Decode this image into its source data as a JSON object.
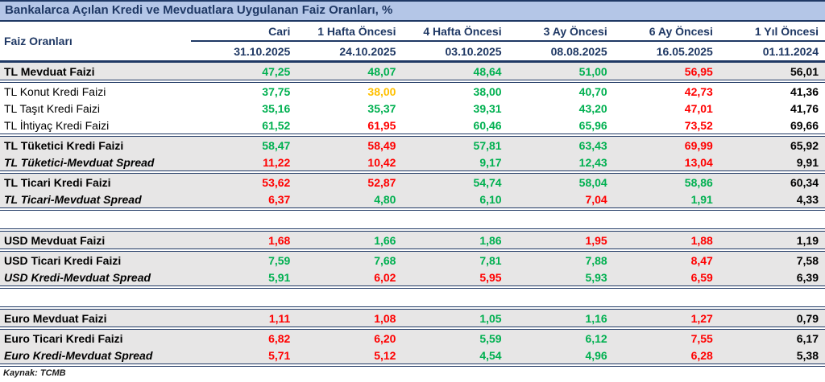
{
  "title": "Bankalarca Açılan Kredi ve Mevduatlara Uygulanan Faiz Oranları, %",
  "colors": {
    "navy": "#1F3864",
    "title_bg": "#B4C6E7",
    "row_gray": "#E7E6E6",
    "increase_red": "#FF0000",
    "decrease_green": "#00B050",
    "flat_amber": "#FFC000",
    "baseline_black": "#000000"
  },
  "table": {
    "label_header": "Faiz Oranları",
    "columns": [
      {
        "label": "Cari",
        "date": "31.10.2025"
      },
      {
        "label": "1 Hafta Öncesi",
        "date": "24.10.2025"
      },
      {
        "label": "4 Hafta Öncesi",
        "date": "03.10.2025"
      },
      {
        "label": "3 Ay Öncesi",
        "date": "08.08.2025"
      },
      {
        "label": "6 Ay Öncesi",
        "date": "16.05.2025"
      },
      {
        "label": "1 Yıl Öncesi",
        "date": "01.11.2024"
      }
    ],
    "rows": [
      {
        "label": "TL Mevduat Faizi",
        "label_style": "bold",
        "bg": "gray",
        "sep_bottom": true,
        "values": [
          "47,25",
          "48,07",
          "48,64",
          "51,00",
          "56,95",
          "56,01"
        ],
        "value_colors": [
          "green",
          "green",
          "green",
          "green",
          "red",
          "black"
        ]
      },
      {
        "label": "TL Konut Kredi Faizi",
        "label_style": "regular",
        "bg": "white",
        "values": [
          "37,75",
          "38,00",
          "38,00",
          "40,70",
          "42,73",
          "41,36"
        ],
        "value_colors": [
          "green",
          "amber",
          "green",
          "green",
          "red",
          "black"
        ]
      },
      {
        "label": "TL Taşıt Kredi Faizi",
        "label_style": "regular",
        "bg": "white",
        "values": [
          "35,16",
          "35,37",
          "39,31",
          "43,20",
          "47,01",
          "41,76"
        ],
        "value_colors": [
          "green",
          "green",
          "green",
          "green",
          "red",
          "black"
        ]
      },
      {
        "label": "TL İhtiyaç Kredi Faizi",
        "label_style": "regular",
        "bg": "white",
        "sep_bottom": true,
        "values": [
          "61,52",
          "61,95",
          "60,46",
          "65,96",
          "73,52",
          "69,66"
        ],
        "value_colors": [
          "green",
          "red",
          "green",
          "green",
          "red",
          "black"
        ]
      },
      {
        "label": "TL Tüketici Kredi Faizi",
        "label_style": "bold",
        "bg": "gray",
        "values": [
          "58,47",
          "58,49",
          "57,81",
          "63,43",
          "69,99",
          "65,92"
        ],
        "value_colors": [
          "green",
          "red",
          "green",
          "green",
          "red",
          "black"
        ]
      },
      {
        "label": "TL Tüketici-Mevduat Spread",
        "label_style": "bolditalic",
        "bg": "gray",
        "sep_bottom": true,
        "values": [
          "11,22",
          "10,42",
          "9,17",
          "12,43",
          "13,04",
          "9,91"
        ],
        "value_colors": [
          "red",
          "red",
          "green",
          "green",
          "red",
          "black"
        ]
      },
      {
        "label": "TL Ticari Kredi Faizi",
        "label_style": "bold",
        "bg": "gray",
        "values": [
          "53,62",
          "52,87",
          "54,74",
          "58,04",
          "58,86",
          "60,34"
        ],
        "value_colors": [
          "red",
          "red",
          "green",
          "green",
          "green",
          "black"
        ]
      },
      {
        "label": "TL Ticari-Mevduat Spread",
        "label_style": "bolditalic",
        "bg": "gray",
        "sep_bottom": true,
        "values": [
          "6,37",
          "4,80",
          "6,10",
          "7,04",
          "1,91",
          "4,33"
        ],
        "value_colors": [
          "red",
          "green",
          "green",
          "red",
          "green",
          "black"
        ]
      },
      {
        "spacer": true
      },
      {
        "label": "USD Mevduat Faizi",
        "label_style": "bold",
        "bg": "gray",
        "sep_top": true,
        "sep_bottom": true,
        "values": [
          "1,68",
          "1,66",
          "1,86",
          "1,95",
          "1,88",
          "1,19"
        ],
        "value_colors": [
          "red",
          "green",
          "green",
          "red",
          "red",
          "black"
        ]
      },
      {
        "label": "USD Ticari Kredi Faizi",
        "label_style": "bold",
        "bg": "gray",
        "values": [
          "7,59",
          "7,68",
          "7,81",
          "7,88",
          "8,47",
          "7,58"
        ],
        "value_colors": [
          "green",
          "green",
          "green",
          "green",
          "red",
          "black"
        ]
      },
      {
        "label": "USD Kredi-Mevduat Spread",
        "label_style": "bolditalic",
        "bg": "gray",
        "sep_bottom": true,
        "values": [
          "5,91",
          "6,02",
          "5,95",
          "5,93",
          "6,59",
          "6,39"
        ],
        "value_colors": [
          "green",
          "red",
          "red",
          "green",
          "red",
          "black"
        ]
      },
      {
        "spacer": true
      },
      {
        "label": "Euro Mevduat Faizi",
        "label_style": "bold",
        "bg": "gray",
        "sep_top": true,
        "sep_bottom": true,
        "values": [
          "1,11",
          "1,08",
          "1,05",
          "1,16",
          "1,27",
          "0,79"
        ],
        "value_colors": [
          "red",
          "red",
          "green",
          "green",
          "red",
          "black"
        ]
      },
      {
        "label": "Euro Ticari Kredi Faizi",
        "label_style": "bold",
        "bg": "gray",
        "values": [
          "6,82",
          "6,20",
          "5,59",
          "6,12",
          "7,55",
          "6,17"
        ],
        "value_colors": [
          "red",
          "red",
          "green",
          "green",
          "red",
          "black"
        ]
      },
      {
        "label": "Euro Kredi-Mevduat Spread",
        "label_style": "bolditalic",
        "bg": "gray",
        "sep_bottom": true,
        "values": [
          "5,71",
          "5,12",
          "4,54",
          "4,96",
          "6,28",
          "5,38"
        ],
        "value_colors": [
          "red",
          "red",
          "green",
          "green",
          "red",
          "black"
        ]
      }
    ]
  },
  "footer": {
    "source": "Kaynak: TCMB"
  }
}
